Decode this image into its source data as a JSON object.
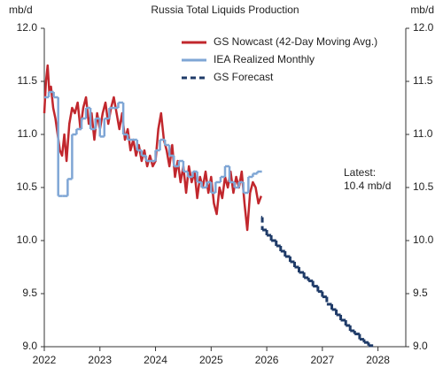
{
  "chart_data": {
    "type": "line",
    "title": "Russia Total Liquids Production",
    "ylabel": "mb/d",
    "y2label": "mb/d",
    "annotations": [
      "Latest:",
      "10.4 mb/d"
    ],
    "xlim": [
      2022,
      2028.5
    ],
    "xticks": [
      2022,
      2023,
      2024,
      2025,
      2026,
      2027,
      2028
    ],
    "ylim": [
      9,
      12
    ],
    "yticks": [
      {
        "value": 9,
        "label": "9.0"
      },
      9.5,
      {
        "value": 10,
        "label": "10.0"
      },
      10.5,
      {
        "value": 11,
        "label": "11.0"
      },
      11.5,
      {
        "value": 12,
        "label": "12.0"
      }
    ],
    "y2lim": [
      9,
      12
    ],
    "y2ticks": [
      {
        "value": 9,
        "label": "9.0"
      },
      9.5,
      {
        "value": 10,
        "label": "10.0"
      },
      10.5,
      {
        "value": 11,
        "label": "11.0"
      },
      11.5,
      {
        "value": 12,
        "label": "12.0"
      }
    ],
    "grid": false,
    "series": [
      {
        "name": "GS Nowcast (42-Day Moving Avg.)",
        "color": "#c1272d",
        "step": false,
        "dashed": false,
        "x": [
          2022.0,
          2022.03,
          2022.06,
          2022.09,
          2022.12,
          2022.16,
          2022.2,
          2022.24,
          2022.28,
          2022.32,
          2022.36,
          2022.4,
          2022.45,
          2022.5,
          2022.55,
          2022.6,
          2022.65,
          2022.7,
          2022.75,
          2022.8,
          2022.85,
          2022.9,
          2022.95,
          2023.0,
          2023.05,
          2023.1,
          2023.15,
          2023.2,
          2023.25,
          2023.3,
          2023.35,
          2023.4,
          2023.45,
          2023.5,
          2023.55,
          2023.6,
          2023.65,
          2023.7,
          2023.75,
          2023.8,
          2023.85,
          2023.9,
          2023.95,
          2024.0,
          2024.05,
          2024.1,
          2024.15,
          2024.2,
          2024.25,
          2024.3,
          2024.35,
          2024.4,
          2024.45,
          2024.5,
          2024.55,
          2024.6,
          2024.65,
          2024.7,
          2024.75,
          2024.8,
          2024.85,
          2024.9,
          2024.95,
          2025.0,
          2025.05,
          2025.1,
          2025.15,
          2025.2,
          2025.25,
          2025.3,
          2025.35,
          2025.4,
          2025.45,
          2025.5,
          2025.55,
          2025.6,
          2025.65,
          2025.7,
          2025.75,
          2025.8,
          2025.85,
          2025.9
        ],
        "values": [
          11.2,
          11.5,
          11.65,
          11.4,
          11.45,
          11.25,
          11.15,
          11.0,
          10.85,
          10.8,
          11.0,
          10.75,
          11.1,
          11.25,
          11.2,
          11.3,
          11.05,
          11.25,
          11.35,
          11.1,
          11.2,
          10.95,
          11.2,
          11.05,
          11.2,
          11.3,
          11.1,
          11.25,
          11.35,
          11.2,
          11.05,
          11.2,
          10.95,
          11.05,
          10.85,
          10.95,
          10.8,
          10.9,
          10.75,
          10.85,
          10.7,
          10.8,
          10.7,
          10.75,
          11.05,
          11.2,
          10.95,
          10.85,
          10.7,
          10.9,
          10.6,
          10.75,
          10.55,
          10.7,
          10.45,
          10.7,
          10.55,
          10.65,
          10.4,
          10.6,
          10.5,
          10.65,
          10.45,
          10.6,
          10.35,
          10.25,
          10.5,
          10.4,
          10.6,
          10.5,
          10.65,
          10.45,
          10.6,
          10.5,
          10.65,
          10.35,
          10.1,
          10.45,
          10.55,
          10.5,
          10.35,
          10.42
        ]
      },
      {
        "name": "IEA Realized Monthly",
        "color": "#7fa6d5",
        "step": true,
        "dashed": false,
        "x": [
          2022.0,
          2022.08,
          2022.17,
          2022.25,
          2022.33,
          2022.42,
          2022.5,
          2022.58,
          2022.67,
          2022.75,
          2022.83,
          2022.92,
          2023.0,
          2023.08,
          2023.17,
          2023.25,
          2023.33,
          2023.42,
          2023.5,
          2023.58,
          2023.67,
          2023.75,
          2023.83,
          2023.92,
          2024.0,
          2024.08,
          2024.17,
          2024.25,
          2024.33,
          2024.42,
          2024.5,
          2024.58,
          2024.67,
          2024.75,
          2024.83,
          2024.92,
          2025.0,
          2025.08,
          2025.17,
          2025.25,
          2025.33,
          2025.42,
          2025.5,
          2025.58,
          2025.67,
          2025.75,
          2025.83
        ],
        "values": [
          11.35,
          11.4,
          11.35,
          10.42,
          10.42,
          10.58,
          11.0,
          11.05,
          11.15,
          11.25,
          11.05,
          11.15,
          10.98,
          11.15,
          11.25,
          11.25,
          11.3,
          11.0,
          10.95,
          10.95,
          10.85,
          10.8,
          10.75,
          10.75,
          10.85,
          10.95,
          10.9,
          10.8,
          10.7,
          10.75,
          10.65,
          10.6,
          10.65,
          10.55,
          10.5,
          10.55,
          10.45,
          10.55,
          10.6,
          10.7,
          10.55,
          10.5,
          10.55,
          10.45,
          10.6,
          10.63,
          10.65
        ]
      },
      {
        "name": "GS Forecast",
        "color": "#1f3b68",
        "step": true,
        "dashed": true,
        "x": [
          2025.9,
          2025.92,
          2026.0,
          2026.08,
          2026.17,
          2026.25,
          2026.33,
          2026.42,
          2026.5,
          2026.58,
          2026.67,
          2026.75,
          2026.83,
          2026.92,
          2027.0,
          2027.08,
          2027.17,
          2027.25,
          2027.33,
          2027.42,
          2027.5,
          2027.58,
          2027.67,
          2027.75,
          2027.83
        ],
        "values": [
          10.22,
          10.1,
          10.05,
          10.0,
          9.95,
          9.9,
          9.85,
          9.8,
          9.75,
          9.7,
          9.65,
          9.62,
          9.57,
          9.52,
          9.47,
          9.4,
          9.35,
          9.3,
          9.25,
          9.2,
          9.15,
          9.12,
          9.07,
          9.04,
          9.01
        ]
      }
    ]
  }
}
